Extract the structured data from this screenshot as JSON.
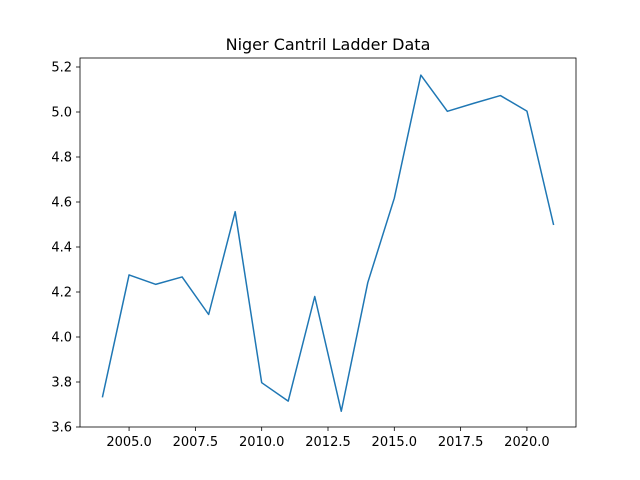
{
  "chart_data": {
    "type": "line",
    "title": "Niger Cantril Ladder Data",
    "xlabel": "",
    "ylabel": "",
    "xlim": [
      2003.15,
      2021.85
    ],
    "ylim": [
      3.6,
      5.24
    ],
    "x_ticks": [
      2005.0,
      2007.5,
      2010.0,
      2012.5,
      2015.0,
      2017.5,
      2020.0
    ],
    "x_tick_labels": [
      "2005.0",
      "2007.5",
      "2010.0",
      "2012.5",
      "2015.0",
      "2017.5",
      "2020.0"
    ],
    "y_ticks": [
      3.6,
      3.8,
      4.0,
      4.2,
      4.4,
      4.6,
      4.8,
      5.0,
      5.2
    ],
    "y_tick_labels": [
      "3.6",
      "3.8",
      "4.0",
      "4.2",
      "4.4",
      "4.6",
      "4.8",
      "5.0",
      "5.2"
    ],
    "grid": false,
    "series": [
      {
        "color": "#1f77b4",
        "x": [
          2004,
          2005,
          2006,
          2007,
          2008,
          2009,
          2010,
          2011,
          2012,
          2013,
          2014,
          2015,
          2016,
          2017,
          2018,
          2019,
          2020,
          2021
        ],
        "y": [
          3.735,
          4.276,
          4.234,
          4.267,
          4.1,
          4.557,
          3.797,
          3.715,
          4.18,
          3.67,
          4.242,
          4.617,
          5.164,
          5.003,
          5.039,
          5.073,
          5.004,
          4.501
        ]
      }
    ]
  }
}
